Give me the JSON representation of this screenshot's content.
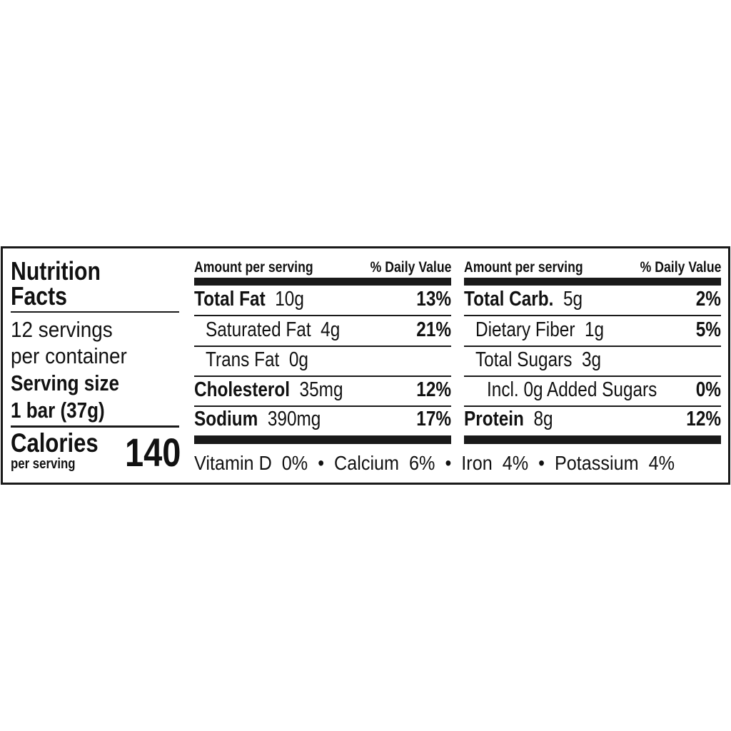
{
  "title_line1": "Nutrition",
  "title_line2": "Facts",
  "servings_line1": "12 servings",
  "servings_line2": "per container",
  "serving_size_label": "Serving size",
  "serving_size_value": "1 bar (37g)",
  "calories_label": "Calories",
  "calories_sub": "per serving",
  "calories_value": "140",
  "header": {
    "amount": "Amount per serving",
    "dv": "% Daily Value"
  },
  "left_rows": [
    {
      "name": "Total Fat",
      "amount": "10g",
      "dv": "13%"
    },
    {
      "name": "Saturated Fat",
      "amount": "4g",
      "dv": "21%"
    },
    {
      "name": "Trans Fat",
      "amount": "0g",
      "dv": ""
    },
    {
      "name": "Cholesterol",
      "amount": "35mg",
      "dv": "12%"
    },
    {
      "name": "Sodium",
      "amount": "390mg",
      "dv": "17%"
    }
  ],
  "right_rows": [
    {
      "name": "Total Carb.",
      "amount": "5g",
      "dv": "2%"
    },
    {
      "name": "Dietary Fiber",
      "amount": "1g",
      "dv": "5%"
    },
    {
      "name": "Total Sugars",
      "amount": "3g",
      "dv": ""
    },
    {
      "name": "Incl. 0g Added Sugars",
      "amount": "",
      "dv": "0%"
    },
    {
      "name": "Protein",
      "amount": "8g",
      "dv": "12%"
    }
  ],
  "micronutrients": "Vitamin D  0%  •  Calcium  6%  •  Iron  4%  •  Potassium  4%"
}
